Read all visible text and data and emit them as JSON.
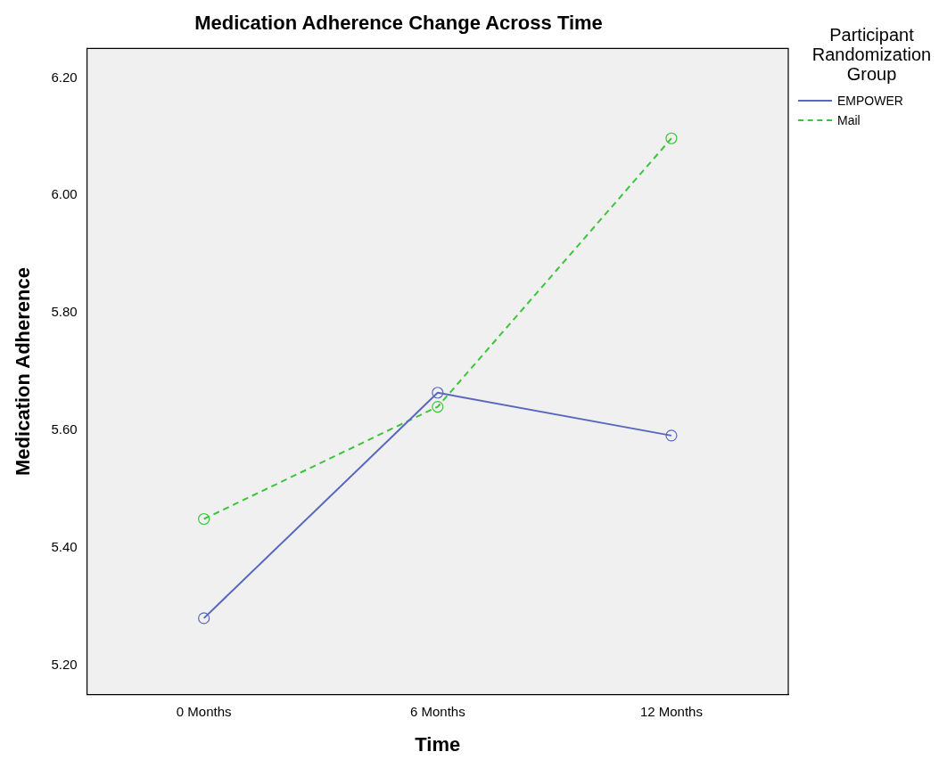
{
  "chart_data": {
    "type": "line",
    "title": "Medication Adherence Change Across Time",
    "xlabel": "Time",
    "ylabel": "Medication Adherence",
    "legend_title": "Participant Randomization Group",
    "categories": [
      "0 Months",
      "6 Months",
      "12 Months"
    ],
    "series": [
      {
        "name": "EMPOWER",
        "color": "#5867c0",
        "values": [
          5.28,
          5.664,
          5.591
        ],
        "line_style": "solid"
      },
      {
        "name": "Mail",
        "color": "#3cc43c",
        "values": [
          5.449,
          5.64,
          6.097
        ],
        "line_style": "dashed"
      }
    ],
    "ylim": [
      5.15,
      6.25
    ],
    "yticks": [
      {
        "value": 5.2,
        "label": "5.20"
      },
      {
        "value": 5.4,
        "label": "5.40"
      },
      {
        "value": 5.6,
        "label": "5.60"
      },
      {
        "value": 5.8,
        "label": "5.80"
      },
      {
        "value": 6.0,
        "label": "6.00"
      },
      {
        "value": 6.2,
        "label": "6.20"
      }
    ],
    "marker": "circle",
    "grid": false,
    "legend": "top right"
  }
}
